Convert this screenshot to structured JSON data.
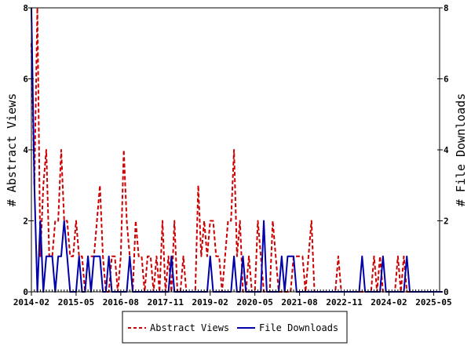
{
  "chart_data": {
    "type": "line",
    "x_axis": {
      "start": "2014-02",
      "end": "2025-07",
      "tick_labels": [
        "2014-02",
        "2015-05",
        "2016-08",
        "2017-11",
        "2019-02",
        "2020-05",
        "2021-08",
        "2022-11",
        "2024-02",
        "2025-05"
      ]
    },
    "y_left": {
      "label": "# Abstract Views",
      "range": [
        0,
        8
      ],
      "ticks": [
        "0",
        "2",
        "4",
        "6",
        "8"
      ]
    },
    "y_right": {
      "label": "# File Downloads",
      "range": [
        0,
        8
      ],
      "ticks": [
        "0",
        "2",
        "4",
        "6",
        "8"
      ]
    },
    "legend": {
      "placement": "bottom"
    },
    "grid": false,
    "series": [
      {
        "name": "Abstract Views",
        "axis": "left",
        "color": "#cc0000",
        "style": "dashed",
        "values": [
          7,
          3,
          8,
          1,
          3,
          4,
          1,
          1,
          2,
          2,
          4,
          2,
          2,
          1,
          1,
          2,
          1,
          1,
          0,
          1,
          1,
          1,
          2,
          3,
          1,
          0,
          0,
          1,
          1,
          0,
          1,
          4,
          2,
          1,
          0,
          2,
          1,
          1,
          0,
          1,
          1,
          0,
          1,
          0,
          2,
          0,
          1,
          0,
          2,
          0,
          0,
          1,
          0,
          0,
          0,
          0,
          3,
          1,
          2,
          1,
          2,
          2,
          1,
          1,
          0,
          1,
          2,
          2,
          4,
          1,
          2,
          0,
          0,
          1,
          0,
          0,
          2,
          1,
          0,
          0,
          0,
          2,
          1,
          0,
          0,
          0,
          0,
          0,
          1,
          1,
          1,
          1,
          0,
          1,
          2,
          0,
          0,
          0,
          0,
          0,
          0,
          0,
          0,
          1,
          0,
          0,
          0,
          0,
          0,
          0,
          0,
          0,
          0,
          0,
          0,
          1,
          0,
          1,
          0,
          0,
          0,
          0,
          0,
          1,
          0,
          1,
          0,
          0,
          0,
          0,
          0,
          0,
          0,
          0,
          0,
          0,
          0,
          0,
          0
        ]
      },
      {
        "name": "File Downloads",
        "axis": "right",
        "color": "#0000aa",
        "style": "solid",
        "values": [
          8,
          3,
          0,
          2,
          0,
          1,
          1,
          1,
          0,
          1,
          1,
          2,
          1,
          0,
          0,
          0,
          1,
          0,
          0,
          1,
          0,
          1,
          1,
          1,
          0,
          0,
          1,
          0,
          0,
          0,
          0,
          0,
          0,
          1,
          0,
          0,
          0,
          0,
          0,
          0,
          0,
          0,
          0,
          0,
          0,
          0,
          0,
          1,
          0,
          0,
          0,
          0,
          0,
          0,
          0,
          0,
          0,
          0,
          0,
          0,
          1,
          0,
          0,
          0,
          0,
          0,
          0,
          0,
          1,
          0,
          0,
          1,
          0,
          0,
          0,
          0,
          0,
          0,
          2,
          0,
          0,
          0,
          0,
          0,
          1,
          0,
          1,
          1,
          1,
          0,
          0,
          0,
          0,
          0,
          0,
          0,
          0,
          0,
          0,
          0,
          0,
          0,
          0,
          0,
          0,
          0,
          0,
          0,
          0,
          0,
          0,
          1,
          0,
          0,
          0,
          0,
          0,
          0,
          1,
          0,
          0,
          0,
          0,
          0,
          0,
          0,
          1,
          0,
          0,
          0,
          0,
          0,
          0,
          0,
          0,
          0,
          0,
          0,
          0
        ]
      }
    ]
  }
}
